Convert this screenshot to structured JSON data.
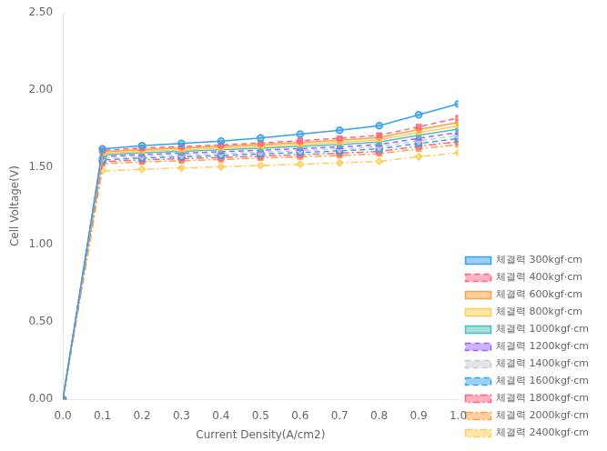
{
  "chart_data": {
    "type": "line",
    "xlabel": "Current Density(A/cm2)",
    "ylabel": "Cell Voltage(V)",
    "xlim": [
      0.0,
      1.0
    ],
    "ylim": [
      0.0,
      2.5
    ],
    "xticks": [
      {
        "value": 0,
        "label": "0.0"
      },
      0.1,
      0.2,
      0.3,
      0.4,
      0.5,
      0.6,
      0.7,
      0.8,
      0.9,
      {
        "value": 1,
        "label": "1.0"
      }
    ],
    "yticks": [
      {
        "value": 0,
        "label": "0.00"
      },
      {
        "value": 0.5,
        "label": "0.50"
      },
      {
        "value": 1,
        "label": "1.00"
      },
      {
        "value": 1.5,
        "label": "1.50"
      },
      {
        "value": 2,
        "label": "2.00"
      },
      {
        "value": 2.5,
        "label": "2.50"
      }
    ],
    "grid": false,
    "legend": "lower right",
    "x": [
      0.0,
      0.1,
      0.2,
      0.3,
      0.4,
      0.5,
      0.6,
      0.7,
      0.8,
      0.9,
      1.0
    ],
    "series": [
      {
        "name": "체결력 300kgf·cm",
        "line_style": "solid",
        "marker": "circle",
        "values": [
          0.0,
          1.62,
          1.64,
          1.655,
          1.67,
          1.69,
          1.715,
          1.74,
          1.77,
          1.84,
          1.91
        ]
      },
      {
        "name": "체결력 400kgf·cm",
        "line_style": "dashed",
        "marker": "square",
        "values": [
          0.0,
          1.61,
          1.625,
          1.635,
          1.645,
          1.658,
          1.672,
          1.688,
          1.708,
          1.762,
          1.82
        ]
      },
      {
        "name": "체결력 600kgf·cm",
        "line_style": "solid",
        "marker": "diamond",
        "values": [
          0.0,
          1.6,
          1.615,
          1.625,
          1.635,
          1.647,
          1.66,
          1.675,
          1.693,
          1.745,
          1.79
        ]
      },
      {
        "name": "체결력 800kgf·cm",
        "line_style": "solid",
        "marker": "triangle",
        "values": [
          0.0,
          1.59,
          1.605,
          1.614,
          1.624,
          1.635,
          1.647,
          1.661,
          1.678,
          1.726,
          1.768
        ]
      },
      {
        "name": "체결력 1000kgf·cm",
        "line_style": "solid",
        "marker": "square",
        "values": [
          0.0,
          1.58,
          1.594,
          1.603,
          1.613,
          1.624,
          1.635,
          1.648,
          1.663,
          1.708,
          1.748
        ]
      },
      {
        "name": "체결력 1200kgf·cm",
        "line_style": "dashed",
        "marker": "triangle",
        "values": [
          0.0,
          1.57,
          1.583,
          1.592,
          1.601,
          1.611,
          1.621,
          1.633,
          1.647,
          1.688,
          1.726
        ]
      },
      {
        "name": "체결력 1400kgf·cm",
        "line_style": "dashed",
        "marker": "diamond",
        "values": [
          0.0,
          1.558,
          1.571,
          1.58,
          1.589,
          1.599,
          1.609,
          1.62,
          1.633,
          1.672,
          1.706
        ]
      },
      {
        "name": "체결력 1600kgf·cm",
        "line_style": "dashed",
        "marker": "circle",
        "values": [
          0.0,
          1.548,
          1.56,
          1.568,
          1.577,
          1.587,
          1.596,
          1.607,
          1.619,
          1.655,
          1.686
        ]
      },
      {
        "name": "체결력 1800kgf·cm",
        "line_style": "dashdot",
        "marker": "circle",
        "values": [
          0.0,
          1.536,
          1.548,
          1.556,
          1.564,
          1.573,
          1.582,
          1.592,
          1.603,
          1.637,
          1.666
        ]
      },
      {
        "name": "체결력 2000kgf·cm",
        "line_style": "dashdot",
        "marker": "square",
        "values": [
          0.0,
          1.524,
          1.535,
          1.543,
          1.551,
          1.56,
          1.568,
          1.577,
          1.588,
          1.62,
          1.647
        ]
      },
      {
        "name": "체결력 2400kgf·cm",
        "line_style": "dashdot",
        "marker": "diamond",
        "values": [
          0.0,
          1.477,
          1.488,
          1.496,
          1.504,
          1.512,
          1.52,
          1.529,
          1.539,
          1.569,
          1.594
        ]
      }
    ]
  }
}
